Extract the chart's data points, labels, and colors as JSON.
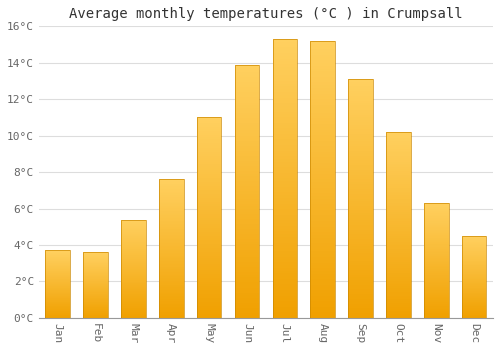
{
  "months": [
    "Jan",
    "Feb",
    "Mar",
    "Apr",
    "May",
    "Jun",
    "Jul",
    "Aug",
    "Sep",
    "Oct",
    "Nov",
    "Dec"
  ],
  "temperatures": [
    3.7,
    3.6,
    5.4,
    7.6,
    11.0,
    13.9,
    15.3,
    15.2,
    13.1,
    10.2,
    6.3,
    4.5
  ],
  "bar_color_bottom": "#F0A000",
  "bar_color_top": "#FFD060",
  "title": "Average monthly temperatures (°C ) in Crumpsall",
  "ylim": [
    0,
    16
  ],
  "yticks": [
    0,
    2,
    4,
    6,
    8,
    10,
    12,
    14,
    16
  ],
  "ytick_labels": [
    "0°C",
    "2°C",
    "4°C",
    "6°C",
    "8°C",
    "10°C",
    "12°C",
    "14°C",
    "16°C"
  ],
  "background_color": "#FFFFFF",
  "grid_color": "#DDDDDD",
  "title_fontsize": 10,
  "tick_fontsize": 8,
  "font_family": "monospace",
  "bar_width": 0.65
}
